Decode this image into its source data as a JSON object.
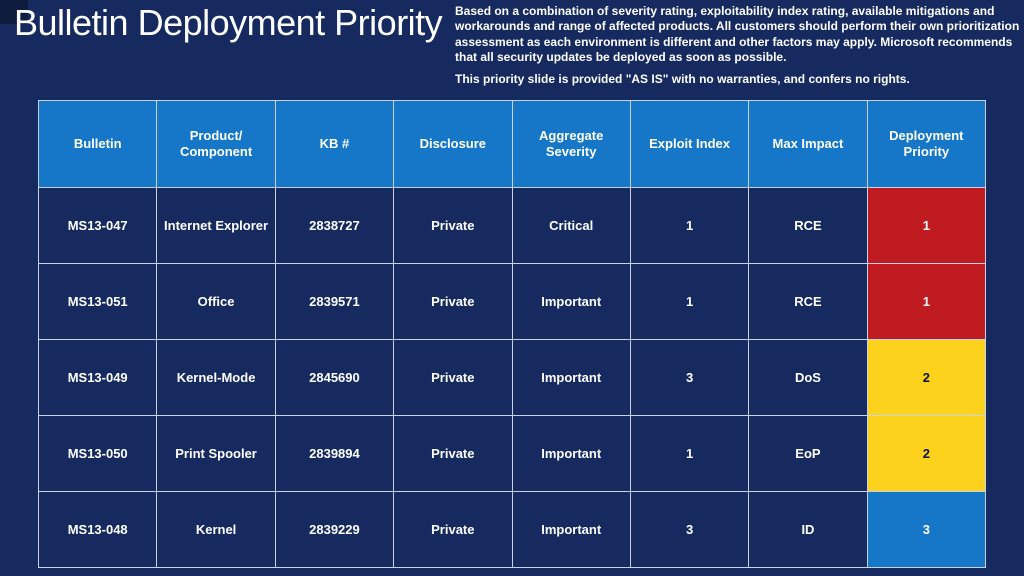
{
  "slide": {
    "title": "Bulletin Deployment Priority",
    "disclaimer_p1": "Based on a combination of severity rating, exploitability index rating, available mitigations and workarounds and range of affected products. All customers should perform their own prioritization assessment as each environment is different and other factors may apply. Microsoft recommends that all security updates be deployed as soon as possible.",
    "disclaimer_p2": "This priority slide is provided \"AS IS\" with no warranties, and confers no rights."
  },
  "table": {
    "columns": [
      "Bulletin",
      "Product/ Component",
      "KB #",
      "Disclosure",
      "Aggregate Severity",
      "Exploit Index",
      "Max Impact",
      "Deployment Priority"
    ],
    "rows": [
      {
        "bulletin": "MS13-047",
        "product": "Internet Explorer",
        "kb": "2838727",
        "disclosure": "Private",
        "severity": "Critical",
        "exploit_index": "1",
        "max_impact": "RCE",
        "priority": "1",
        "priority_level": "red"
      },
      {
        "bulletin": "MS13-051",
        "product": "Office",
        "kb": "2839571",
        "disclosure": "Private",
        "severity": "Important",
        "exploit_index": "1",
        "max_impact": "RCE",
        "priority": "1",
        "priority_level": "red"
      },
      {
        "bulletin": "MS13-049",
        "product": "Kernel-Mode",
        "kb": "2845690",
        "disclosure": "Private",
        "severity": "Important",
        "exploit_index": "3",
        "max_impact": "DoS",
        "priority": "2",
        "priority_level": "yellow"
      },
      {
        "bulletin": "MS13-050",
        "product": "Print Spooler",
        "kb": "2839894",
        "disclosure": "Private",
        "severity": "Important",
        "exploit_index": "1",
        "max_impact": "EoP",
        "priority": "2",
        "priority_level": "yellow"
      },
      {
        "bulletin": "MS13-048",
        "product": "Kernel",
        "kb": "2839229",
        "disclosure": "Private",
        "severity": "Important",
        "exploit_index": "3",
        "max_impact": "ID",
        "priority": "3",
        "priority_level": "blue"
      }
    ]
  },
  "colors": {
    "background": "#162A60",
    "corner_accent": "#0E1C3E",
    "header_blue": "#1677C8",
    "priority_red": "#C11B22",
    "priority_yellow": "#FCD21C",
    "priority_blue": "#1677C8",
    "grid_line": "#C7D3E6",
    "text": "#FFFFFF"
  }
}
